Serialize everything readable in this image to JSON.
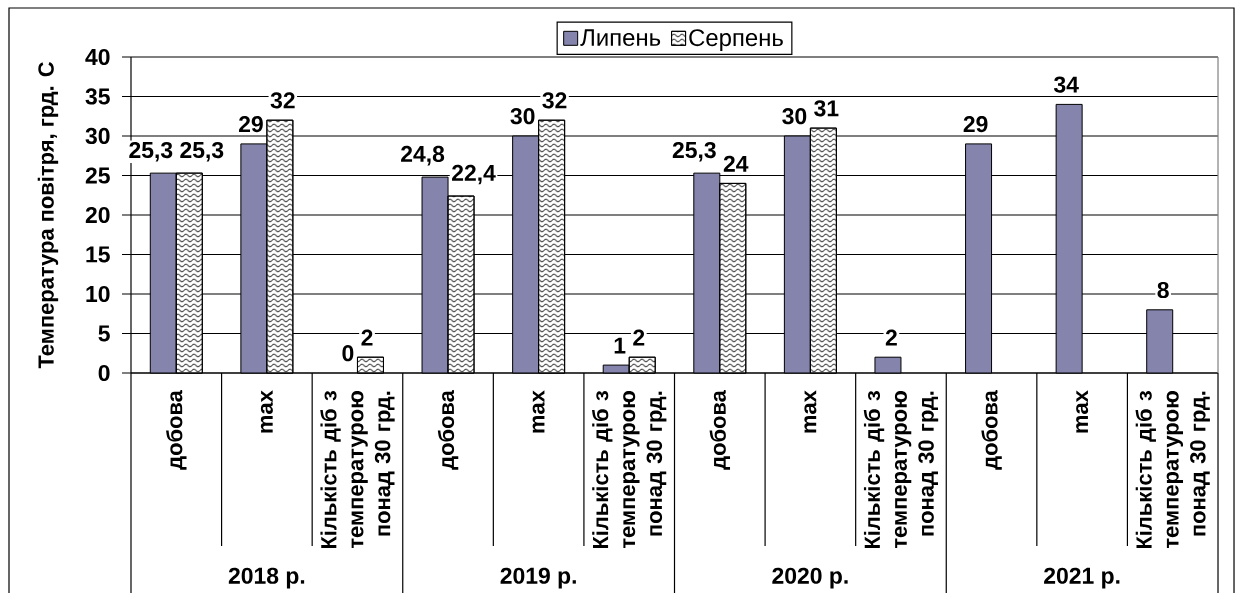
{
  "chart_data": {
    "type": "bar",
    "ylabel": "Температура повітря, грд. С",
    "categories": [
      "добова",
      "max",
      "Кількість діб з температурою понад 30 грд.",
      "добова",
      "max",
      "Кількість діб з температурою понад 30 грд.",
      "добова",
      "max",
      "Кількість діб з температурою понад 30 грд.",
      "добова",
      "max",
      "Кількість діб з температурою понад 30 грд."
    ],
    "series": [
      {
        "name": "Липень",
        "color": "#8484ac",
        "values": [
          25.3,
          29,
          0,
          24.8,
          30,
          1,
          25.3,
          30,
          2,
          29,
          34,
          8
        ],
        "value_labels": [
          "25,3",
          "29",
          "0",
          "24,8",
          "30",
          "1",
          "25,3",
          "30",
          "2",
          "29",
          "34",
          "8"
        ]
      },
      {
        "name": "Серпень",
        "color": "#ffffff",
        "values": [
          25.3,
          32,
          2,
          22.4,
          32,
          2,
          24,
          31,
          null,
          null,
          null,
          null
        ],
        "value_labels": [
          "25,3",
          "32",
          "2",
          "22,4",
          "32",
          "2",
          "24",
          "31",
          null,
          null,
          null,
          null
        ]
      }
    ],
    "ylim": [
      0,
      40
    ],
    "yticks": [
      0,
      5,
      10,
      15,
      20,
      25,
      30,
      35,
      40
    ],
    "grid": "y",
    "legend": "top",
    "annotations": [
      "2018 р.",
      "2019 р.",
      "2020 р.",
      "2021 р."
    ]
  }
}
